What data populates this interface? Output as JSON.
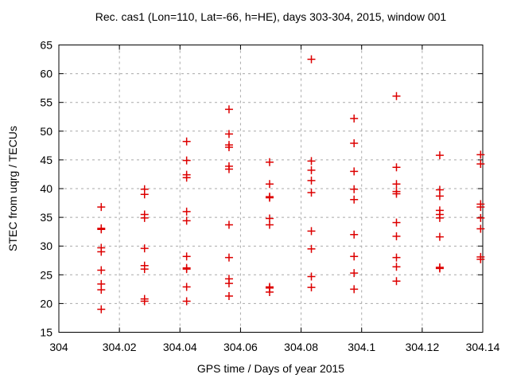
{
  "chart_data": {
    "type": "scatter",
    "title": "Rec. cas1 (Lon=110, Lat=-66, h=HE), days 303-304, 2015, window 001",
    "xlabel": "GPS time / Days of year 2015",
    "ylabel": "STEC from uqrg / TECUs",
    "xlim": [
      304,
      304.14
    ],
    "ylim": [
      15,
      65
    ],
    "grid": true,
    "legend": "none",
    "marker": {
      "shape": "plus-icon",
      "color": "#dd0000",
      "size": 10,
      "stroke_width": 1.5
    },
    "frame_color": "#000000",
    "grid_color": "#a9a9a9",
    "xticks": {
      "values": [
        304,
        304.02,
        304.04,
        304.06,
        304.08,
        304.1,
        304.12,
        304.14
      ],
      "labels": [
        "304",
        "304.02",
        "304.04",
        "304.06",
        "304.08",
        "304.1",
        "304.12",
        "304.14"
      ]
    },
    "yticks": {
      "values": [
        15,
        20,
        25,
        30,
        35,
        40,
        45,
        50,
        55,
        60,
        65
      ],
      "labels": [
        "15",
        "20",
        "25",
        "30",
        "35",
        "40",
        "45",
        "50",
        "55",
        "60",
        "65"
      ]
    },
    "series": [
      {
        "name": "STEC from uqrg",
        "points": [
          [
            304.014,
            36.8
          ],
          [
            304.014,
            33.1
          ],
          [
            304.014,
            32.9
          ],
          [
            304.014,
            29.7
          ],
          [
            304.014,
            29.0
          ],
          [
            304.014,
            25.8
          ],
          [
            304.014,
            23.4
          ],
          [
            304.014,
            22.4
          ],
          [
            304.014,
            19.0
          ],
          [
            304.0283,
            39.9
          ],
          [
            304.0283,
            39.0
          ],
          [
            304.0283,
            35.5
          ],
          [
            304.0283,
            34.9
          ],
          [
            304.0283,
            29.6
          ],
          [
            304.0283,
            26.6
          ],
          [
            304.0283,
            26.0
          ],
          [
            304.0283,
            20.8
          ],
          [
            304.0283,
            20.4
          ],
          [
            304.0422,
            48.2
          ],
          [
            304.0422,
            44.9
          ],
          [
            304.0422,
            42.4
          ],
          [
            304.0422,
            41.9
          ],
          [
            304.0422,
            36.0
          ],
          [
            304.0422,
            34.4
          ],
          [
            304.0422,
            28.2
          ],
          [
            304.0422,
            26.2
          ],
          [
            304.0422,
            26.0
          ],
          [
            304.0422,
            22.9
          ],
          [
            304.0422,
            20.4
          ],
          [
            304.0562,
            53.8
          ],
          [
            304.0562,
            49.5
          ],
          [
            304.0562,
            47.6
          ],
          [
            304.0562,
            47.2
          ],
          [
            304.0562,
            43.9
          ],
          [
            304.0562,
            43.4
          ],
          [
            304.0562,
            33.7
          ],
          [
            304.0562,
            28.0
          ],
          [
            304.0562,
            24.3
          ],
          [
            304.0562,
            23.5
          ],
          [
            304.0562,
            21.3
          ],
          [
            304.0696,
            44.6
          ],
          [
            304.0696,
            40.8
          ],
          [
            304.0696,
            38.6
          ],
          [
            304.0696,
            38.4
          ],
          [
            304.0696,
            34.8
          ],
          [
            304.0696,
            33.7
          ],
          [
            304.0696,
            22.9
          ],
          [
            304.0696,
            22.7
          ],
          [
            304.0696,
            22.0
          ],
          [
            304.0834,
            62.5
          ],
          [
            304.0834,
            44.8
          ],
          [
            304.0834,
            43.2
          ],
          [
            304.0834,
            41.4
          ],
          [
            304.0834,
            39.3
          ],
          [
            304.0834,
            32.6
          ],
          [
            304.0834,
            29.5
          ],
          [
            304.0834,
            24.7
          ],
          [
            304.0834,
            22.8
          ],
          [
            304.0975,
            52.2
          ],
          [
            304.0975,
            47.9
          ],
          [
            304.0975,
            43.0
          ],
          [
            304.0975,
            39.9
          ],
          [
            304.0975,
            38.1
          ],
          [
            304.0975,
            32.0
          ],
          [
            304.0975,
            28.2
          ],
          [
            304.0975,
            25.3
          ],
          [
            304.0975,
            22.5
          ],
          [
            304.1115,
            56.1
          ],
          [
            304.1115,
            43.7
          ],
          [
            304.1115,
            40.8
          ],
          [
            304.1115,
            39.5
          ],
          [
            304.1115,
            39.1
          ],
          [
            304.1115,
            34.1
          ],
          [
            304.1115,
            31.7
          ],
          [
            304.1115,
            28.0
          ],
          [
            304.1115,
            26.4
          ],
          [
            304.1115,
            23.9
          ],
          [
            304.1258,
            45.8
          ],
          [
            304.1258,
            39.8
          ],
          [
            304.1258,
            38.7
          ],
          [
            304.1258,
            36.2
          ],
          [
            304.1258,
            35.5
          ],
          [
            304.1258,
            34.9
          ],
          [
            304.1258,
            31.6
          ],
          [
            304.1258,
            26.3
          ],
          [
            304.1258,
            26.1
          ],
          [
            304.1393,
            45.9
          ],
          [
            304.1393,
            44.3
          ],
          [
            304.1393,
            37.3
          ],
          [
            304.1393,
            36.8
          ],
          [
            304.1393,
            34.9
          ],
          [
            304.1393,
            33.0
          ],
          [
            304.1393,
            28.1
          ],
          [
            304.1393,
            27.7
          ]
        ]
      }
    ]
  }
}
